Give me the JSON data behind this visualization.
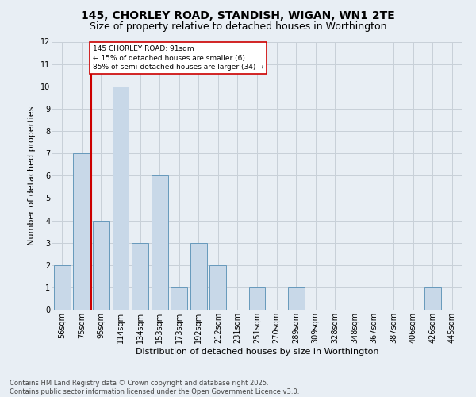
{
  "title": "145, CHORLEY ROAD, STANDISH, WIGAN, WN1 2TE",
  "subtitle": "Size of property relative to detached houses in Worthington",
  "xlabel": "Distribution of detached houses by size in Worthington",
  "ylabel": "Number of detached properties",
  "categories": [
    "56sqm",
    "75sqm",
    "95sqm",
    "114sqm",
    "134sqm",
    "153sqm",
    "173sqm",
    "192sqm",
    "212sqm",
    "231sqm",
    "251sqm",
    "270sqm",
    "289sqm",
    "309sqm",
    "328sqm",
    "348sqm",
    "367sqm",
    "387sqm",
    "406sqm",
    "426sqm",
    "445sqm"
  ],
  "values": [
    2,
    7,
    4,
    10,
    3,
    6,
    1,
    3,
    2,
    0,
    1,
    0,
    1,
    0,
    0,
    0,
    0,
    0,
    0,
    1,
    0
  ],
  "bar_color": "#c8d8e8",
  "bar_edge_color": "#6699bb",
  "grid_color": "#c8d0d8",
  "background_color": "#e8eef4",
  "vline_x_index": 2,
  "vline_color": "#cc0000",
  "annotation_text": "145 CHORLEY ROAD: 91sqm\n← 15% of detached houses are smaller (6)\n85% of semi-detached houses are larger (34) →",
  "annotation_box_color": "#ffffff",
  "annotation_box_edge": "#cc0000",
  "ylim": [
    0,
    12
  ],
  "yticks": [
    0,
    1,
    2,
    3,
    4,
    5,
    6,
    7,
    8,
    9,
    10,
    11,
    12
  ],
  "footnote": "Contains HM Land Registry data © Crown copyright and database right 2025.\nContains public sector information licensed under the Open Government Licence v3.0.",
  "title_fontsize": 10,
  "subtitle_fontsize": 9,
  "xlabel_fontsize": 8,
  "ylabel_fontsize": 8,
  "tick_fontsize": 7,
  "footnote_fontsize": 6,
  "annotation_fontsize": 6.5
}
